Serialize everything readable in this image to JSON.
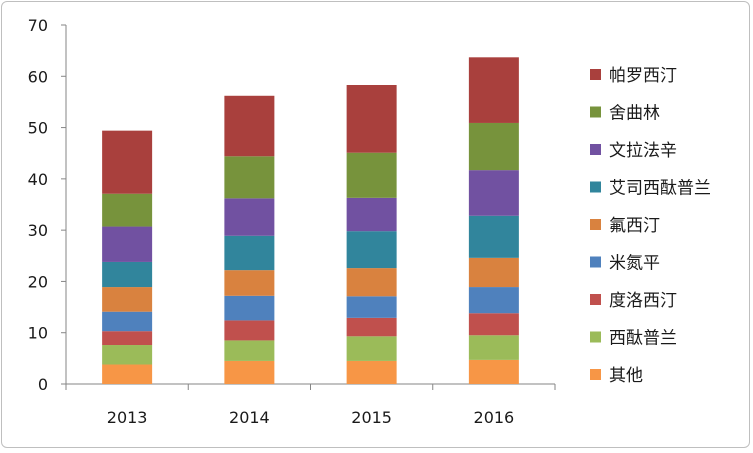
{
  "chart_data": {
    "type": "bar",
    "stacked": true,
    "categories": [
      "2013",
      "2014",
      "2015",
      "2016"
    ],
    "ylim": [
      0,
      70
    ],
    "yticks": [
      0,
      10,
      20,
      30,
      40,
      50,
      60,
      70
    ],
    "grid": false,
    "legend_position": "right",
    "title": "",
    "xlabel": "",
    "ylabel": "",
    "series": [
      {
        "name": "其他",
        "color": "#f79646",
        "values": [
          3.8,
          4.5,
          4.5,
          4.7
        ]
      },
      {
        "name": "西酞普兰",
        "color": "#9bbb59",
        "values": [
          3.8,
          4.0,
          4.8,
          4.8
        ]
      },
      {
        "name": "度洛西汀",
        "color": "#c0504d",
        "values": [
          2.7,
          3.9,
          3.6,
          4.3
        ]
      },
      {
        "name": "米氮平",
        "color": "#4f81bd",
        "values": [
          3.8,
          4.8,
          4.2,
          5.1
        ]
      },
      {
        "name": "氟西汀",
        "color": "#d9823f",
        "values": [
          4.8,
          5.0,
          5.5,
          5.7
        ]
      },
      {
        "name": "艾司西酞普兰",
        "color": "#31859c",
        "values": [
          4.9,
          6.7,
          7.2,
          8.2
        ]
      },
      {
        "name": "文拉法辛",
        "color": "#7151a1",
        "values": [
          6.9,
          7.3,
          6.5,
          8.9
        ]
      },
      {
        "name": "舍曲林",
        "color": "#77933c",
        "values": [
          6.4,
          8.2,
          8.8,
          9.2
        ]
      },
      {
        "name": "帕罗西汀",
        "color": "#a9403d",
        "values": [
          12.3,
          11.8,
          13.2,
          12.8
        ]
      }
    ]
  }
}
